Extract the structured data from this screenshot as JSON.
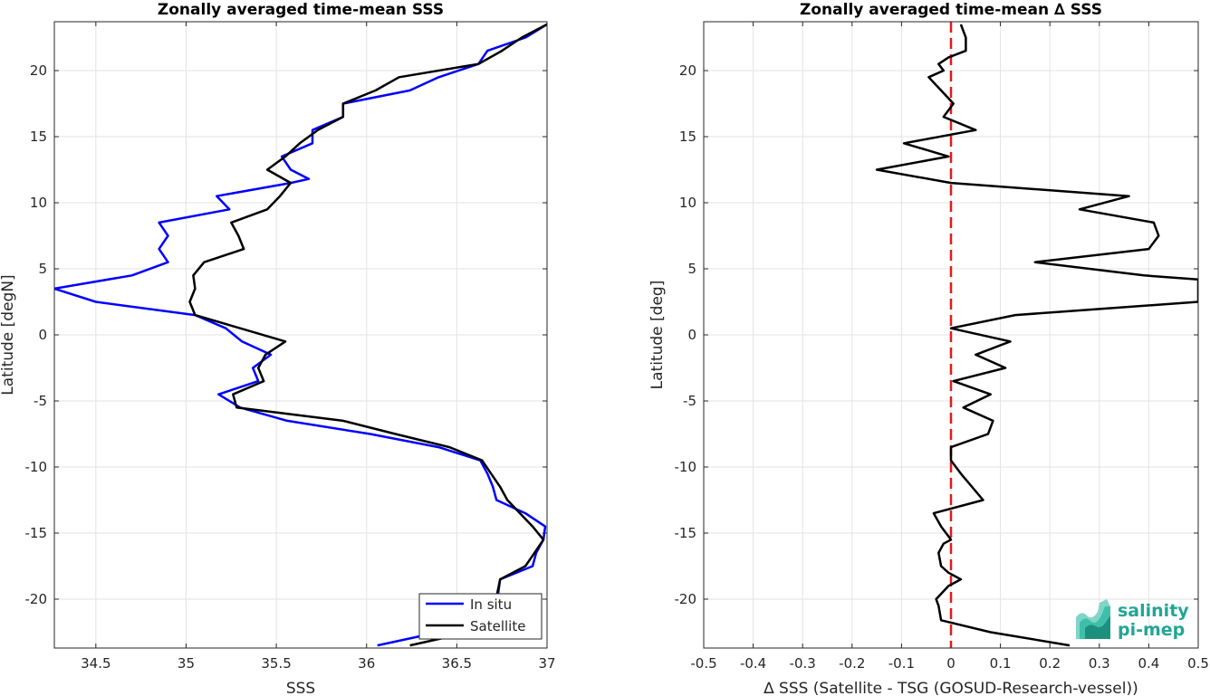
{
  "chart_data": [
    {
      "type": "line",
      "title": "Zonally averaged time-mean SSS",
      "xlabel": "SSS",
      "ylabel": "Latitude [degN]",
      "xlim": [
        34.27,
        37.0
      ],
      "ylim": [
        -23.7,
        23.7
      ],
      "xticks": [
        34.5,
        35,
        35.5,
        36,
        36.5,
        37
      ],
      "xtick_labels": [
        "34.5",
        "35",
        "35.5",
        "36",
        "36.5",
        "37"
      ],
      "yticks": [
        -20,
        -15,
        -10,
        -5,
        0,
        5,
        10,
        15,
        20
      ],
      "ytick_labels": [
        "-20",
        "-15",
        "-10",
        "-5",
        "0",
        "5",
        "10",
        "15",
        "20"
      ],
      "grid": true,
      "legend_position": "bottom-right",
      "series": [
        {
          "name": "In situ",
          "color": "#0000ff",
          "points": [
            [
              36.06,
              -23.5
            ],
            [
              36.4,
              -22.5
            ],
            [
              36.72,
              -20.5
            ],
            [
              36.74,
              -18.5
            ],
            [
              36.92,
              -17.5
            ],
            [
              36.94,
              -16.5
            ],
            [
              36.98,
              -15.5
            ],
            [
              36.99,
              -14.5
            ],
            [
              36.88,
              -13.5
            ],
            [
              36.72,
              -12.5
            ],
            [
              36.7,
              -11.5
            ],
            [
              36.67,
              -10.5
            ],
            [
              36.63,
              -9.5
            ],
            [
              36.4,
              -8.5
            ],
            [
              36.02,
              -7.5
            ],
            [
              35.56,
              -6.5
            ],
            [
              35.3,
              -5.5
            ],
            [
              35.18,
              -4.5
            ],
            [
              35.4,
              -3.5
            ],
            [
              35.37,
              -2.5
            ],
            [
              35.47,
              -1.5
            ],
            [
              35.31,
              -0.5
            ],
            [
              35.22,
              0.5
            ],
            [
              35.05,
              1.5
            ],
            [
              34.5,
              2.5
            ],
            [
              34.27,
              3.5
            ],
            [
              34.7,
              4.5
            ],
            [
              34.9,
              5.5
            ],
            [
              34.85,
              6.5
            ],
            [
              34.9,
              7.5
            ],
            [
              34.85,
              8.5
            ],
            [
              35.24,
              9.5
            ],
            [
              35.17,
              10.5
            ],
            [
              35.58,
              11.5
            ],
            [
              35.68,
              11.8
            ],
            [
              35.58,
              12.5
            ],
            [
              35.53,
              13.5
            ],
            [
              35.7,
              14.5
            ],
            [
              35.7,
              15.5
            ],
            [
              35.87,
              16.5
            ],
            [
              35.87,
              17.5
            ],
            [
              36.24,
              18.5
            ],
            [
              36.4,
              19.5
            ],
            [
              36.62,
              20.5
            ],
            [
              36.67,
              21.5
            ],
            [
              36.88,
              22.5
            ],
            [
              37.0,
              23.5
            ]
          ]
        },
        {
          "name": "Satellite",
          "color": "#000000",
          "points": [
            [
              36.24,
              -23.5
            ],
            [
              36.57,
              -22.5
            ],
            [
              36.71,
              -20.5
            ],
            [
              36.74,
              -18.5
            ],
            [
              36.88,
              -17.5
            ],
            [
              36.93,
              -16.5
            ],
            [
              36.98,
              -15.5
            ],
            [
              36.92,
              -14.5
            ],
            [
              36.85,
              -13.5
            ],
            [
              36.78,
              -12.5
            ],
            [
              36.74,
              -11.5
            ],
            [
              36.69,
              -10.5
            ],
            [
              36.64,
              -9.5
            ],
            [
              36.46,
              -8.5
            ],
            [
              36.16,
              -7.5
            ],
            [
              35.87,
              -6.5
            ],
            [
              35.28,
              -5.5
            ],
            [
              35.26,
              -4.5
            ],
            [
              35.43,
              -3.5
            ],
            [
              35.4,
              -2.5
            ],
            [
              35.44,
              -1.5
            ],
            [
              35.55,
              -0.5
            ],
            [
              35.3,
              0.5
            ],
            [
              35.05,
              1.5
            ],
            [
              35.02,
              2.5
            ],
            [
              35.05,
              3.5
            ],
            [
              35.04,
              4.5
            ],
            [
              35.1,
              5.5
            ],
            [
              35.32,
              6.5
            ],
            [
              35.29,
              7.5
            ],
            [
              35.25,
              8.5
            ],
            [
              35.45,
              9.5
            ],
            [
              35.52,
              10.5
            ],
            [
              35.58,
              11.5
            ],
            [
              35.45,
              12.5
            ],
            [
              35.55,
              13.5
            ],
            [
              35.63,
              14.5
            ],
            [
              35.73,
              15.5
            ],
            [
              35.87,
              16.5
            ],
            [
              35.87,
              17.5
            ],
            [
              36.05,
              18.5
            ],
            [
              36.18,
              19.5
            ],
            [
              36.62,
              20.5
            ],
            [
              36.75,
              21.5
            ],
            [
              36.86,
              22.5
            ],
            [
              37.0,
              23.5
            ]
          ]
        }
      ]
    },
    {
      "type": "line",
      "title": "Zonally averaged time-mean ∆ SSS",
      "xlabel": "∆ SSS (Satellite - TSG (GOSUD-Research-vessel))",
      "ylabel": "Latitude [deg]",
      "xlim": [
        -0.5,
        0.5
      ],
      "ylim": [
        -23.7,
        23.7
      ],
      "xticks": [
        -0.5,
        -0.4,
        -0.3,
        -0.2,
        -0.1,
        0,
        0.1,
        0.2,
        0.3,
        0.4,
        0.5
      ],
      "xtick_labels": [
        "-0.5",
        "-0.4",
        "-0.3",
        "-0.2",
        "-0.1",
        "0",
        "0.1",
        "0.2",
        "0.3",
        "0.4",
        "0.5"
      ],
      "yticks": [
        -20,
        -15,
        -10,
        -5,
        0,
        5,
        10,
        15,
        20
      ],
      "ytick_labels": [
        "-20",
        "-15",
        "-10",
        "-5",
        "0",
        "5",
        "10",
        "15",
        "20"
      ],
      "grid": true,
      "reference_line": {
        "x": 0,
        "color": "#e31a1c",
        "style": "dashed"
      },
      "series": [
        {
          "color": "#000000",
          "points": [
            [
              0.24,
              -23.5
            ],
            [
              0.08,
              -22.5
            ],
            [
              -0.02,
              -21.6
            ],
            [
              -0.025,
              -20.5
            ],
            [
              -0.03,
              -20.0
            ],
            [
              -0.005,
              -19.0
            ],
            [
              0.02,
              -18.5
            ],
            [
              -0.005,
              -18.0
            ],
            [
              -0.02,
              -17.5
            ],
            [
              -0.025,
              -16.5
            ],
            [
              -0.015,
              -15.8
            ],
            [
              0.0,
              -15.5
            ],
            [
              -0.02,
              -14.5
            ],
            [
              -0.035,
              -13.5
            ],
            [
              0.065,
              -12.5
            ],
            [
              0.02,
              -10.5
            ],
            [
              0.0,
              -9.5
            ],
            [
              0.0,
              -8.5
            ],
            [
              0.075,
              -7.5
            ],
            [
              0.085,
              -6.5
            ],
            [
              0.025,
              -5.5
            ],
            [
              0.08,
              -4.5
            ],
            [
              0.005,
              -3.5
            ],
            [
              0.11,
              -2.5
            ],
            [
              0.05,
              -1.5
            ],
            [
              0.12,
              -0.5
            ],
            [
              0.0,
              0.5
            ],
            [
              0.13,
              1.5
            ],
            [
              0.5,
              2.5
            ],
            [
              0.5,
              4.2
            ],
            [
              0.39,
              4.5
            ],
            [
              0.17,
              5.5
            ],
            [
              0.4,
              6.5
            ],
            [
              0.42,
              7.5
            ],
            [
              0.41,
              8.5
            ],
            [
              0.26,
              9.5
            ],
            [
              0.36,
              10.5
            ],
            [
              0.0,
              11.5
            ],
            [
              -0.15,
              12.5
            ],
            [
              -0.005,
              13.5
            ],
            [
              -0.095,
              14.5
            ],
            [
              0.05,
              15.5
            ],
            [
              -0.015,
              16.5
            ],
            [
              0.005,
              17.5
            ],
            [
              -0.02,
              18.5
            ],
            [
              -0.045,
              19.5
            ],
            [
              -0.015,
              20.0
            ],
            [
              -0.025,
              20.5
            ],
            [
              -0.005,
              21.0
            ],
            [
              0.03,
              21.5
            ],
            [
              0.03,
              22.5
            ],
            [
              0.02,
              23.5
            ]
          ]
        }
      ]
    }
  ],
  "legend": {
    "items": [
      "In situ",
      "Satellite"
    ]
  },
  "logo": {
    "line1": "salinity",
    "line2": "pi-mep"
  }
}
